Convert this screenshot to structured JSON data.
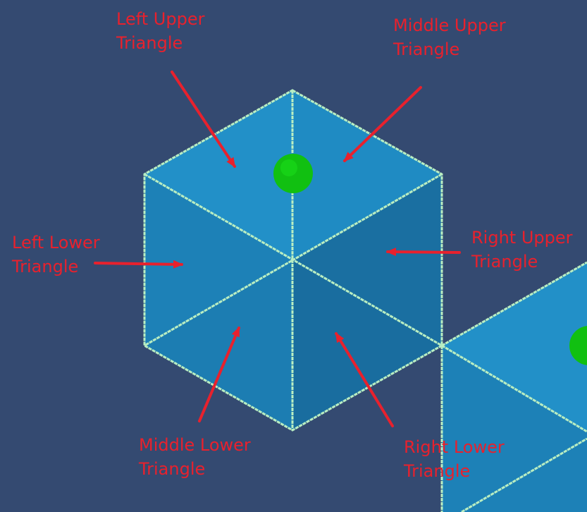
{
  "colors": {
    "background": "#344a71",
    "edge": "#b9eec2",
    "face_top_left": "#2290c8",
    "face_top_right": "#1f8bc3",
    "face_left_upper": "#1d81b7",
    "face_left_lower": "#1d80b6",
    "face_bottom_left": "#1c7db2",
    "face_right": "#1a6fa1",
    "marker": "#11c011",
    "marker_highlight": "#1cde1c",
    "annotation": "#e8212d"
  },
  "labels": {
    "left_upper": {
      "line1": "Left Upper",
      "line2": "Triangle"
    },
    "middle_upper": {
      "line1": "Middle Upper",
      "line2": "Triangle"
    },
    "left_lower": {
      "line1": "Left Lower",
      "line2": "Triangle"
    },
    "right_upper": {
      "line1": "Right Upper",
      "line2": "Triangle"
    },
    "middle_lower": {
      "line1": "Middle Lower",
      "line2": "Triangle"
    },
    "right_lower": {
      "line1": "Right Lower",
      "line2": "Triangle"
    }
  }
}
